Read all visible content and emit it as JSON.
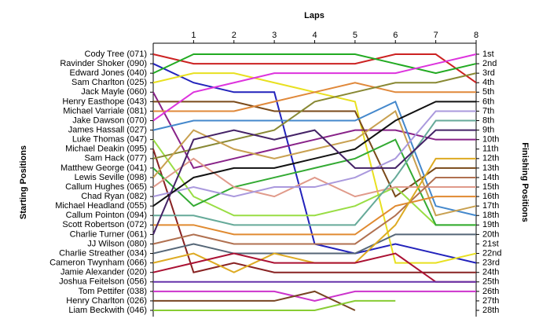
{
  "chart_data": {
    "type": "bump",
    "title": "Laps",
    "y_label": "Starting Positions",
    "y2_label": "Finishing Positions",
    "x": [
      0,
      1,
      2,
      3,
      4,
      5,
      6,
      7,
      8
    ],
    "xlim": [
      0,
      8
    ],
    "xticks": [
      1,
      2,
      3,
      4,
      5,
      6,
      7,
      8
    ],
    "ylim": [
      1,
      28
    ],
    "start_labels": [
      "Cody Tree (071)",
      "Ravinder Shoker (090)",
      "Edward Jones (040)",
      "Sam Charlton (025)",
      "Jack Mayle (060)",
      "Henry Easthope (043)",
      "Michael Varriale (081)",
      "Jake Dawson (070)",
      "James Hassall (027)",
      "Luke Thomas (047)",
      "Michael Deakin (095)",
      "Sam Hack (077)",
      "Matthew George (041)",
      "Lewis Seville (098)",
      "Callum Hughes (065)",
      "Chad Ryan (082)",
      "Michael Headland (055)",
      "Callum Pointon (094)",
      "Scott Robertson (072)",
      "Charlie Turner (061)",
      "JJ Wilson (080)",
      "Charlie Streather (034)",
      "Cameron Twynham (066)",
      "Jamie Alexander (020)",
      "Joshua Feitelson (056)",
      "Tom Pettifer (038)",
      "Henry Charlton (026)",
      "Liam Beckwith (046)"
    ],
    "finish_labels": [
      "1st",
      "2nd",
      "3rd",
      "4th",
      "5th",
      "6th",
      "7th",
      "8th",
      "9th",
      "10th",
      "11th",
      "12th",
      "13th",
      "14th",
      "15th",
      "16th",
      "17th",
      "18th",
      "19th",
      "20th",
      "21st",
      "22nd",
      "23rd",
      "24th",
      "25th",
      "26th",
      "27th",
      "28th"
    ],
    "series": [
      {
        "color": "#cc2222",
        "values": [
          1,
          2,
          2,
          2,
          2,
          2,
          1,
          1,
          4
        ]
      },
      {
        "color": "#2222bb",
        "values": [
          2,
          4,
          5,
          5,
          21,
          22,
          21,
          22,
          23
        ]
      },
      {
        "color": "#22aa22",
        "values": [
          3,
          1,
          1,
          1,
          1,
          1,
          2,
          3,
          2
        ]
      },
      {
        "color": "#e8e020",
        "values": [
          4,
          3,
          3,
          4,
          5,
          6,
          23,
          23,
          22
        ]
      },
      {
        "color": "#882288",
        "values": [
          5,
          13,
          12,
          11,
          10,
          9,
          9,
          10,
          10
        ]
      },
      {
        "color": "#7a4a1a",
        "values": [
          6,
          6,
          6,
          7,
          7,
          7,
          16,
          13,
          13
        ]
      },
      {
        "color": "#e0883a",
        "values": [
          7,
          7,
          7,
          6,
          5,
          4,
          5,
          5,
          5
        ]
      },
      {
        "color": "#dd33dd",
        "values": [
          8,
          5,
          4,
          3,
          3,
          3,
          3,
          2,
          1
        ]
      },
      {
        "color": "#4488cc",
        "values": [
          9,
          8,
          8,
          8,
          8,
          8,
          6,
          17,
          18
        ]
      },
      {
        "color": "#99dd44",
        "values": [
          10,
          16,
          18,
          18,
          18,
          17,
          15,
          19,
          19
        ]
      },
      {
        "color": "#882222",
        "values": [
          11,
          24,
          23,
          24,
          24,
          24,
          24,
          24,
          24
        ]
      },
      {
        "color": "#888833",
        "values": [
          12,
          11,
          10,
          9,
          6,
          5,
          4,
          4,
          3
        ]
      },
      {
        "color": "#33aa33",
        "values": [
          13,
          17,
          15,
          14,
          13,
          12,
          10,
          19,
          19
        ]
      },
      {
        "color": "#c8a050",
        "values": [
          14,
          9,
          11,
          12,
          11,
          10,
          7,
          18,
          17
        ]
      },
      {
        "color": "#e09a8a",
        "values": [
          15,
          12,
          15,
          16,
          14,
          16,
          15,
          15,
          15
        ]
      },
      {
        "color": "#aa99dd",
        "values": [
          16,
          15,
          16,
          15,
          15,
          14,
          12,
          7,
          7
        ]
      },
      {
        "color": "#111111",
        "values": [
          17,
          14,
          13,
          13,
          12,
          11,
          8,
          6,
          6
        ]
      },
      {
        "color": "#66aa99",
        "values": [
          18,
          18,
          19,
          19,
          19,
          19,
          14,
          8,
          8
        ]
      },
      {
        "color": "#e08a30",
        "values": [
          19,
          19,
          20,
          20,
          20,
          20,
          17,
          16,
          16
        ]
      },
      {
        "color": "#442266",
        "values": [
          20,
          10,
          9,
          10,
          9,
          13,
          13,
          9,
          9
        ]
      },
      {
        "color": "#b07050",
        "values": [
          21,
          20,
          21,
          21,
          21,
          21,
          18,
          14,
          14
        ]
      },
      {
        "color": "#556677",
        "values": [
          22,
          21,
          22,
          22,
          22,
          22,
          20,
          20,
          20
        ]
      },
      {
        "color": "#ddaa22",
        "values": [
          23,
          22,
          24,
          22,
          23,
          23,
          19,
          12,
          12
        ]
      },
      {
        "color": "#aa1133",
        "values": [
          24,
          23,
          22,
          23,
          23,
          23,
          22,
          25,
          25
        ]
      },
      {
        "color": "#6633aa",
        "values": [
          25,
          25,
          25,
          25,
          25,
          25,
          25,
          25,
          25
        ]
      },
      {
        "color": "#cc33cc",
        "values": [
          26,
          26,
          26,
          26,
          27,
          26,
          26,
          26,
          26
        ]
      },
      {
        "color": "#774422",
        "values": [
          27,
          27,
          27,
          27,
          26,
          28,
          null,
          null,
          null
        ]
      },
      {
        "color": "#88cc33",
        "values": [
          28,
          28,
          28,
          28,
          28,
          27,
          27,
          null,
          null
        ]
      }
    ]
  }
}
